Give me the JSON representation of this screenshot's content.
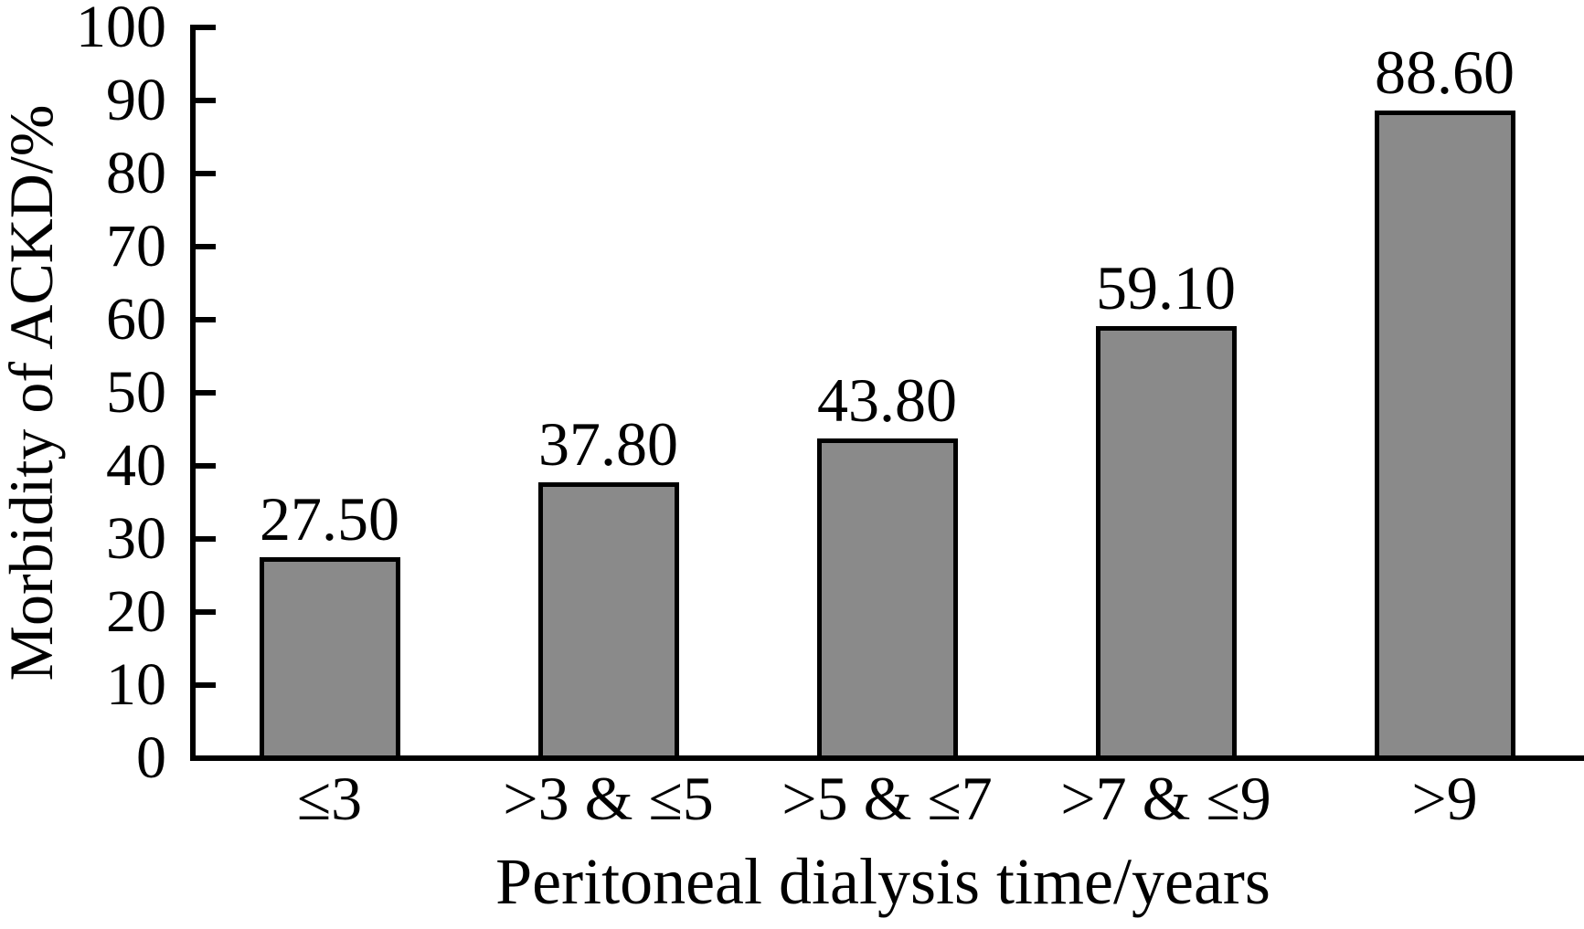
{
  "chart_data": {
    "type": "bar",
    "title": "",
    "categories": [
      "≤3",
      ">3 & ≤5",
      ">5 & ≤7",
      ">7 & ≤9",
      ">9"
    ],
    "values": [
      27.5,
      37.8,
      43.8,
      59.1,
      88.6
    ],
    "value_labels": [
      "27.50",
      "37.80",
      "43.80",
      "59.10",
      "88.60"
    ],
    "xlabel": "Peritoneal dialysis time/years",
    "ylabel": "Morbidity of ACKD/%",
    "ylim": [
      0,
      100
    ],
    "y_ticks": [
      0,
      10,
      20,
      30,
      40,
      50,
      60,
      70,
      80,
      90,
      100
    ],
    "grid": false,
    "legend": "none",
    "bar_fill_color": "#8a8a8a",
    "bar_outline_color": "#000000",
    "axis_color": "#000000",
    "background_color": "#ffffff"
  }
}
